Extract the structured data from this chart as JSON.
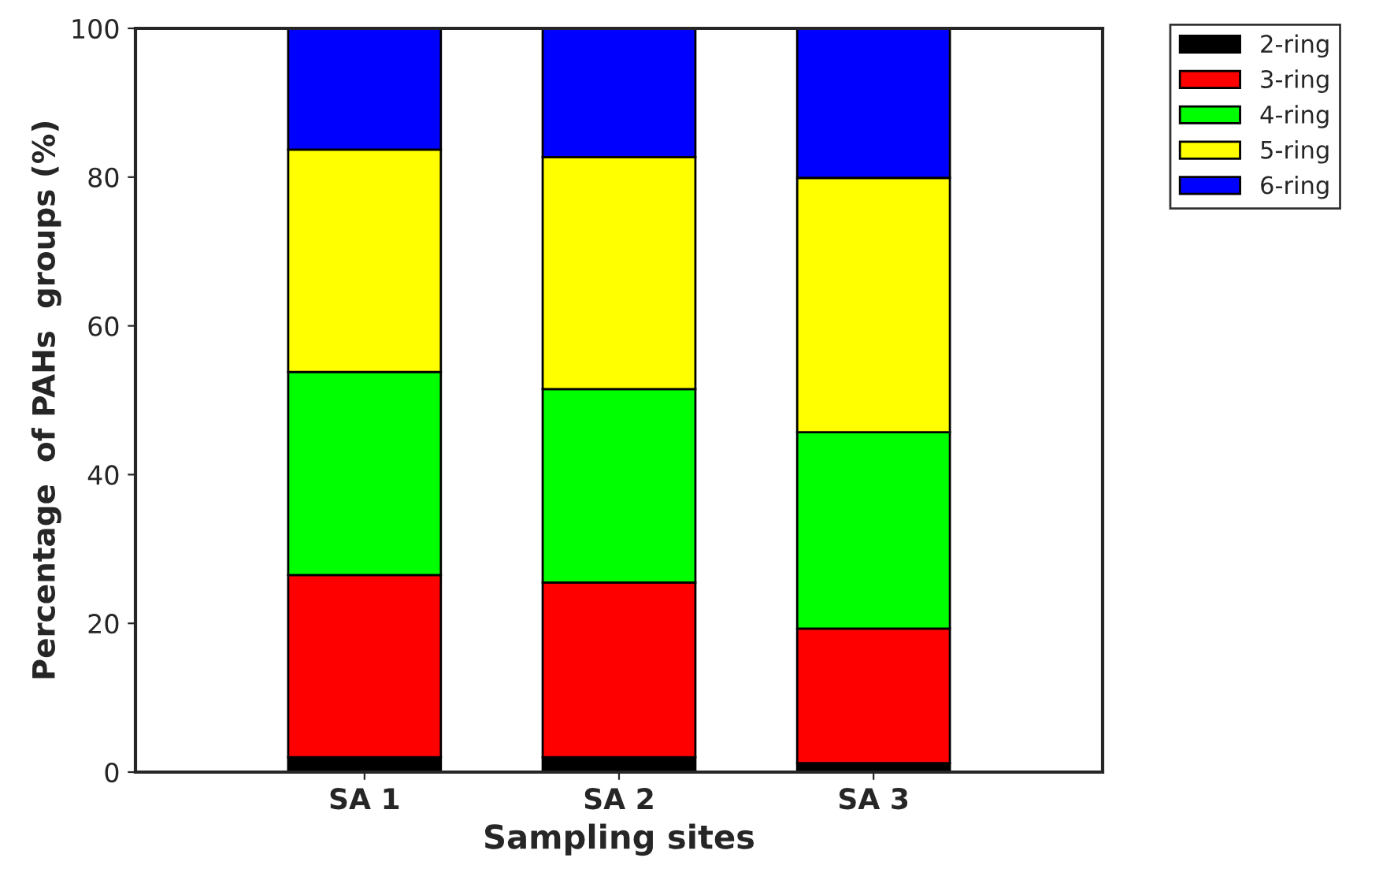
{
  "chart_data": {
    "type": "bar",
    "stacked": true,
    "xlabel": "Sampling sites",
    "ylabel": "Percentage  of PAHs  groups (%)",
    "categories": [
      "SA 1",
      "SA 2",
      "SA 3"
    ],
    "series": [
      {
        "name": "2-ring",
        "color": "#000000",
        "values": [
          2.0,
          2.0,
          1.2
        ]
      },
      {
        "name": "3-ring",
        "color": "#ff0000",
        "values": [
          24.5,
          23.5,
          18.1
        ]
      },
      {
        "name": "4-ring",
        "color": "#00ff00",
        "values": [
          27.3,
          26.0,
          26.4
        ]
      },
      {
        "name": "5-ring",
        "color": "#ffff00",
        "values": [
          29.9,
          31.2,
          34.2
        ]
      },
      {
        "name": "6-ring",
        "color": "#0000ff",
        "values": [
          16.3,
          17.3,
          20.1
        ]
      }
    ],
    "ylim": [
      0,
      100
    ],
    "yticks": [
      0,
      20,
      40,
      60,
      80,
      100
    ],
    "grid": false,
    "legend": "top right"
  }
}
